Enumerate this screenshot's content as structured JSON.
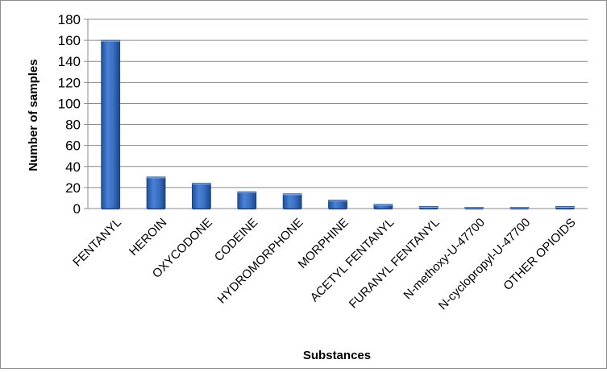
{
  "chart_data": {
    "type": "bar",
    "title": "",
    "xlabel": "Substances",
    "ylabel": "Number of samples",
    "ylim": [
      0,
      180
    ],
    "yticks": [
      0,
      20,
      40,
      60,
      80,
      100,
      120,
      140,
      160,
      180
    ],
    "grid": true,
    "legend": "none",
    "bar_color": "#3a6fc4",
    "categories": [
      "FENTANYL",
      "HEROIN",
      "OXYCODONE",
      "CODEINE",
      "HYDROMORPHONE",
      "MORPHINE",
      "ACETYL FENTANYL",
      "FURANYL FENTANYL",
      "N-methoxy-U-47700",
      "N-cyclopropyl-U-47700",
      "OTHER OPIOIDS"
    ],
    "values": [
      160,
      30,
      24,
      16,
      14,
      8,
      4,
      2,
      1,
      1,
      2
    ]
  }
}
